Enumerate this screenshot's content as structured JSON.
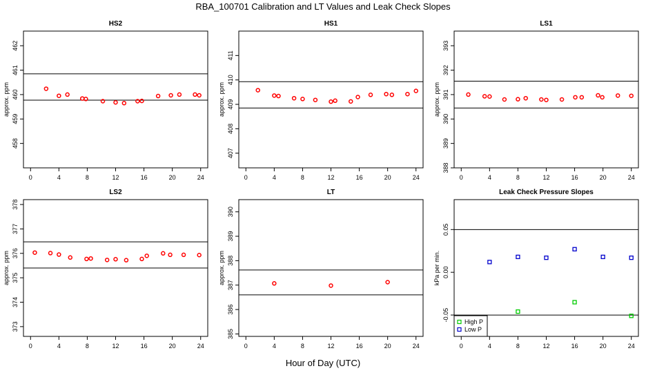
{
  "figure": {
    "title": "RBA_100701  Calibration and LT Values and Leak Check Slopes",
    "x_axis_title": "Hour of Day (UTC)"
  },
  "chart_data": [
    {
      "type": "scatter",
      "title": "HS2",
      "ylabel": "approx. ppm",
      "xlim": [
        -1,
        25
      ],
      "ylim": [
        457.0,
        462.6
      ],
      "x_ticks": [
        0,
        4,
        8,
        12,
        16,
        20,
        24
      ],
      "y_ticks": [
        458,
        459,
        460,
        461,
        462
      ],
      "hlines": [
        459.77,
        460.85
      ],
      "series": [
        {
          "color": "#ff0000",
          "x": [
            2.2,
            4.0,
            5.2,
            7.3,
            7.8,
            10.2,
            12.0,
            13.2,
            15.1,
            15.7,
            18.0,
            19.8,
            21.0,
            23.2,
            23.8
          ],
          "y": [
            460.24,
            459.95,
            460.0,
            459.84,
            459.82,
            459.73,
            459.68,
            459.65,
            459.73,
            459.74,
            459.94,
            459.97,
            460.0,
            460.0,
            459.97
          ]
        }
      ]
    },
    {
      "type": "scatter",
      "title": "HS1",
      "ylabel": "approx. ppm",
      "xlim": [
        -1,
        25
      ],
      "ylim": [
        406.4,
        412.0
      ],
      "x_ticks": [
        0,
        4,
        8,
        12,
        16,
        20,
        24
      ],
      "y_ticks": [
        407,
        408,
        409,
        410,
        411
      ],
      "hlines": [
        408.85,
        409.93
      ],
      "series": [
        {
          "color": "#ff0000",
          "x": [
            1.7,
            4.0,
            4.6,
            6.8,
            8.0,
            9.8,
            12.0,
            12.6,
            14.8,
            15.8,
            17.6,
            19.8,
            20.6,
            22.8,
            24.0
          ],
          "y": [
            409.58,
            409.36,
            409.34,
            409.25,
            409.22,
            409.18,
            409.11,
            409.15,
            409.12,
            409.3,
            409.39,
            409.42,
            409.39,
            409.42,
            409.55
          ]
        }
      ]
    },
    {
      "type": "scatter",
      "title": "LS1",
      "ylabel": "approx. ppm",
      "xlim": [
        -1,
        25
      ],
      "ylim": [
        388.0,
        393.6
      ],
      "x_ticks": [
        0,
        4,
        8,
        12,
        16,
        20,
        24
      ],
      "y_ticks": [
        388,
        389,
        390,
        391,
        392,
        393
      ],
      "hlines": [
        390.45,
        391.55
      ],
      "series": [
        {
          "color": "#ff0000",
          "x": [
            1.0,
            3.3,
            4.0,
            6.1,
            8.0,
            9.1,
            11.3,
            12.0,
            14.2,
            16.1,
            17.0,
            19.3,
            19.9,
            22.1,
            24.0
          ],
          "y": [
            391.0,
            390.93,
            390.92,
            390.8,
            390.81,
            390.85,
            390.8,
            390.78,
            390.8,
            390.89,
            390.89,
            390.97,
            390.89,
            390.96,
            390.95
          ]
        }
      ]
    },
    {
      "type": "scatter",
      "title": "LS2",
      "ylabel": "approx. ppm",
      "xlim": [
        -1,
        25
      ],
      "ylim": [
        372.6,
        378.2
      ],
      "x_ticks": [
        0,
        4,
        8,
        12,
        16,
        20,
        24
      ],
      "y_ticks": [
        373,
        374,
        375,
        376,
        377,
        378
      ],
      "hlines": [
        375.4,
        376.47
      ],
      "series": [
        {
          "color": "#ff0000",
          "x": [
            0.6,
            2.8,
            4.0,
            5.6,
            7.9,
            8.5,
            10.8,
            12.0,
            13.5,
            15.7,
            16.4,
            18.7,
            19.7,
            21.6,
            23.8
          ],
          "y": [
            376.03,
            376.01,
            375.95,
            375.83,
            375.77,
            375.79,
            375.73,
            375.76,
            375.72,
            375.77,
            375.9,
            376.0,
            375.94,
            375.94,
            375.93
          ]
        }
      ]
    },
    {
      "type": "scatter",
      "title": "LT",
      "ylabel": "approx. ppm",
      "xlim": [
        -1,
        25
      ],
      "ylim": [
        384.9,
        390.5
      ],
      "x_ticks": [
        0,
        4,
        8,
        12,
        16,
        20,
        24
      ],
      "y_ticks": [
        385,
        386,
        387,
        388,
        389,
        390
      ],
      "hlines": [
        386.6,
        387.62
      ],
      "series": [
        {
          "color": "#ff0000",
          "x": [
            4.0,
            12.0,
            20.0
          ],
          "y": [
            387.07,
            386.98,
            387.12
          ]
        }
      ]
    },
    {
      "type": "scatter",
      "title": "Leak Check Pressure Slopes",
      "ylabel": "kPa per min.",
      "xlim": [
        -1,
        25
      ],
      "ylim": [
        -0.075,
        0.085
      ],
      "x_ticks": [
        0,
        4,
        8,
        12,
        16,
        20,
        24
      ],
      "y_ticks": [
        -0.05,
        0.0,
        0.05
      ],
      "y_tick_labels": [
        "-0.05",
        "0.00",
        "0.05"
      ],
      "hlines": [
        -0.05,
        0.05
      ],
      "legend": {
        "position": "bottom-left",
        "entries": [
          "High P",
          "Low P"
        ]
      },
      "series": [
        {
          "name": "High P",
          "marker": "square",
          "color": "#00cc00",
          "x": [
            8.0,
            16.0,
            24.0
          ],
          "y": [
            -0.046,
            -0.035,
            -0.051
          ]
        },
        {
          "name": "Low P",
          "marker": "square",
          "color": "#0000cc",
          "x": [
            4.0,
            8.0,
            12.0,
            16.0,
            20.0,
            24.0
          ],
          "y": [
            0.012,
            0.018,
            0.017,
            0.027,
            0.018,
            0.017
          ]
        }
      ]
    }
  ]
}
